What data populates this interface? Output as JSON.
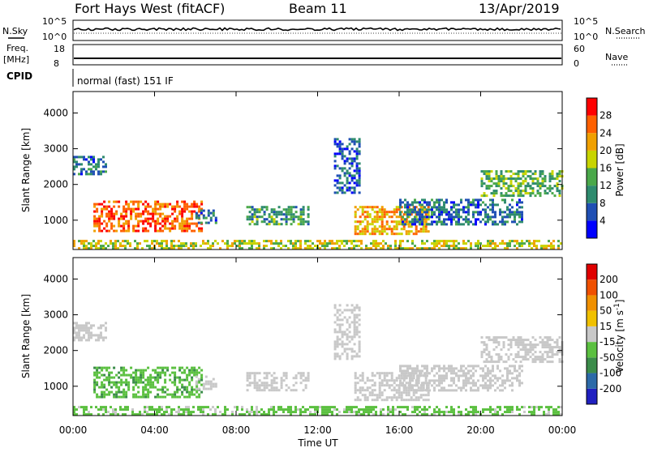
{
  "header": {
    "station": "Fort Hays West (fitACF)",
    "beam": "Beam 11",
    "date": "13/Apr/2019"
  },
  "top_panels": {
    "nsky": {
      "label": "N.Sky",
      "ticks": [
        "10^5",
        "10^0"
      ],
      "right_label": "N.Search",
      "right_ticks": [
        "10^5",
        "10^0"
      ]
    },
    "freq": {
      "label_line1": "Freq.",
      "label_line2": "[MHz]",
      "ticks": [
        "18",
        "8"
      ],
      "right_label": "Nave",
      "right_ticks": [
        "60",
        "0"
      ]
    },
    "cpid": {
      "label": "CPID",
      "value": "normal (fast) 151 IF"
    }
  },
  "chart_data": [
    {
      "type": "heatmap",
      "title": "",
      "xlabel": "Time UT",
      "ylabel": "Slant Range [km]",
      "x_ticks": [
        "00:00",
        "04:00",
        "08:00",
        "12:00",
        "16:00",
        "20:00",
        "00:00"
      ],
      "xlim": [
        0,
        24
      ],
      "y_ticks": [
        1000,
        2000,
        3000,
        4000
      ],
      "ylim": [
        180,
        4600
      ],
      "colorbar": {
        "label": "Power [dB]",
        "ticks": [
          "4",
          "8",
          "12",
          "16",
          "20",
          "24",
          "28"
        ],
        "range": [
          0,
          32
        ],
        "colors": [
          "#0000ff",
          "#1f4fb4",
          "#2e8b6e",
          "#4aa84a",
          "#c8d400",
          "#f0a000",
          "#ff6000",
          "#ff0000"
        ]
      },
      "regions": [
        {
          "t0": 0.0,
          "t1": 1.6,
          "r0": 2300,
          "r1": 2800,
          "level": 8
        },
        {
          "t0": 1.0,
          "t1": 6.3,
          "r0": 700,
          "r1": 1550,
          "level": 26
        },
        {
          "t0": 6.0,
          "t1": 7.0,
          "r0": 900,
          "r1": 1300,
          "level": 8
        },
        {
          "t0": 8.5,
          "t1": 11.5,
          "r0": 900,
          "r1": 1400,
          "level": 12
        },
        {
          "t0": 12.8,
          "t1": 14.0,
          "r0": 1800,
          "r1": 3300,
          "level": 6
        },
        {
          "t0": 13.8,
          "t1": 17.5,
          "r0": 600,
          "r1": 1400,
          "level": 22
        },
        {
          "t0": 16.0,
          "t1": 22.0,
          "r0": 900,
          "r1": 1600,
          "level": 8
        },
        {
          "t0": 20.0,
          "t1": 24.0,
          "r0": 1700,
          "r1": 2400,
          "level": 14
        },
        {
          "t0": 0.0,
          "t1": 24.0,
          "r0": 180,
          "r1": 450,
          "level": 18
        }
      ]
    },
    {
      "type": "heatmap",
      "title": "",
      "xlabel": "Time UT",
      "ylabel": "Slant Range [km]",
      "x_ticks": [
        "00:00",
        "04:00",
        "08:00",
        "12:00",
        "16:00",
        "20:00",
        "00:00"
      ],
      "xlim": [
        0,
        24
      ],
      "y_ticks": [
        1000,
        2000,
        3000,
        4000
      ],
      "ylim": [
        180,
        4600
      ],
      "colorbar": {
        "label": "Velocity [m s^-1]",
        "ticks": [
          "200",
          "100",
          "50",
          "15",
          "-15",
          "-50",
          "-100",
          "-200"
        ],
        "range": [
          -250,
          250
        ],
        "colors": [
          "#2020c0",
          "#2c6aa8",
          "#3b8c4a",
          "#5bc040",
          "#c8c8c8",
          "#f0c000",
          "#f09000",
          "#f05000",
          "#e00000"
        ]
      },
      "regions": [
        {
          "t0": 0.0,
          "t1": 1.6,
          "r0": 2300,
          "r1": 2800,
          "level": 0
        },
        {
          "t0": 1.0,
          "t1": 6.3,
          "r0": 700,
          "r1": 1550,
          "level": -70
        },
        {
          "t0": 6.0,
          "t1": 7.0,
          "r0": 900,
          "r1": 1300,
          "level": 0
        },
        {
          "t0": 8.5,
          "t1": 11.5,
          "r0": 900,
          "r1": 1400,
          "level": 0
        },
        {
          "t0": 12.8,
          "t1": 14.0,
          "r0": 1800,
          "r1": 3300,
          "level": 0
        },
        {
          "t0": 13.8,
          "t1": 17.5,
          "r0": 600,
          "r1": 1400,
          "level": 0
        },
        {
          "t0": 16.0,
          "t1": 22.0,
          "r0": 900,
          "r1": 1600,
          "level": 0
        },
        {
          "t0": 20.0,
          "t1": 24.0,
          "r0": 1700,
          "r1": 2400,
          "level": 0
        },
        {
          "t0": 0.0,
          "t1": 24.0,
          "r0": 180,
          "r1": 450,
          "level": -40
        }
      ]
    }
  ]
}
